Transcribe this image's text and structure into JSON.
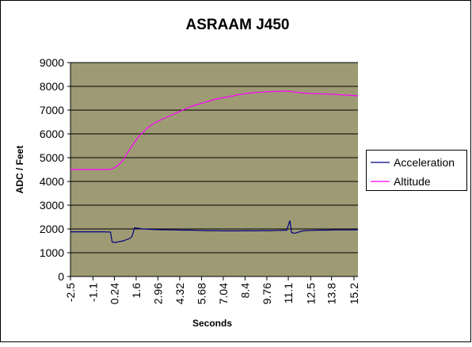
{
  "chart_data": {
    "type": "line",
    "title": "ASRAAM J450",
    "x_label": "Seconds",
    "y_label": "ADC / Feet",
    "x": [
      -2.5,
      -1.5,
      -0.5,
      0.0,
      0.1,
      0.3,
      0.5,
      0.8,
      1.0,
      1.2,
      1.35,
      1.5,
      1.7,
      2.0,
      2.3,
      2.6,
      3.0,
      3.5,
      4.0,
      4.5,
      5.0,
      5.5,
      6.0,
      6.5,
      7.0,
      7.5,
      8.0,
      8.5,
      9.0,
      9.5,
      10.0,
      10.5,
      11.0,
      11.2,
      11.3,
      11.5,
      12.0,
      12.5,
      13.0,
      13.5,
      14.0,
      14.5,
      15.0,
      15.45
    ],
    "series": [
      {
        "name": "Acceleration",
        "color": "#000080",
        "values": [
          1880,
          1880,
          1880,
          1870,
          1450,
          1430,
          1460,
          1500,
          1550,
          1600,
          1700,
          2050,
          2030,
          2000,
          1990,
          1980,
          1970,
          1960,
          1960,
          1950,
          1950,
          1940,
          1930,
          1930,
          1920,
          1920,
          1920,
          1930,
          1920,
          1930,
          1930,
          1940,
          1950,
          2350,
          1850,
          1820,
          1920,
          1940,
          1950,
          1950,
          1960,
          1960,
          1960,
          1970
        ]
      },
      {
        "name": "Altitude",
        "color": "#ff00ff",
        "values": [
          4500,
          4500,
          4500,
          4510,
          4530,
          4600,
          4700,
          4900,
          5150,
          5350,
          5500,
          5650,
          5850,
          6050,
          6250,
          6400,
          6550,
          6700,
          6850,
          7000,
          7150,
          7250,
          7350,
          7450,
          7520,
          7580,
          7650,
          7700,
          7740,
          7760,
          7780,
          7790,
          7800,
          7790,
          7780,
          7760,
          7720,
          7700,
          7690,
          7680,
          7660,
          7640,
          7620,
          7600
        ]
      }
    ],
    "xlim": [
      -2.5,
      15.45
    ],
    "xticks": [
      -2.5,
      -1.1,
      0.24,
      1.6,
      2.96,
      4.32,
      5.68,
      7.04,
      8.4,
      9.76,
      11.1,
      12.5,
      13.8,
      15.2
    ],
    "ylim": [
      0,
      9000
    ],
    "yticks": [
      0,
      1000,
      2000,
      3000,
      4000,
      5000,
      6000,
      7000,
      8000,
      9000
    ],
    "grid": true,
    "legend": "right"
  }
}
